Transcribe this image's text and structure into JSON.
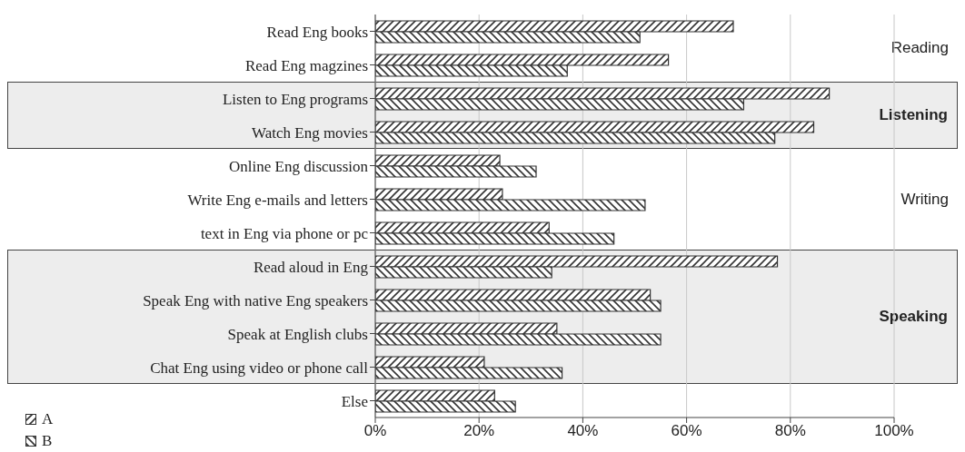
{
  "chart_data": {
    "type": "bar",
    "orientation": "horizontal",
    "categories": [
      "Read Eng books",
      "Read Eng magzines",
      "Listen to Eng programs",
      "Watch Eng movies",
      "Online Eng discussion",
      "Write Eng e-mails and letters",
      "text in Eng via phone or pc",
      "Read aloud in Eng",
      "Speak Eng with native Eng speakers",
      "Speak at English clubs",
      "Chat Eng using video or phone call",
      "Else"
    ],
    "series": [
      {
        "name": "A",
        "color": "#333333",
        "values": [
          69,
          56.5,
          87.5,
          84.5,
          24,
          24.5,
          33.5,
          77.5,
          53,
          35,
          21,
          23
        ]
      },
      {
        "name": "B",
        "color": "#333333",
        "values": [
          51,
          37,
          71,
          77,
          31,
          52,
          46,
          34,
          55,
          55,
          36,
          27
        ]
      }
    ],
    "xlim": [
      0,
      100
    ],
    "xticks": [
      {
        "value": 0,
        "label": "0%"
      },
      {
        "value": 20,
        "label": "20%"
      },
      {
        "value": 40,
        "label": "40%"
      },
      {
        "value": 60,
        "label": "60%"
      },
      {
        "value": 80,
        "label": "80%"
      },
      {
        "value": 100,
        "label": "100%"
      }
    ],
    "grid": "x",
    "legend": "bottom left",
    "annotations": [
      "Reading",
      "Writing"
    ],
    "bands": [
      {
        "axis": "y",
        "from": "Listen to Eng programs",
        "to": "Watch Eng movies",
        "label": "Listening",
        "color": "#ededed"
      },
      {
        "axis": "y",
        "from": "Read aloud in Eng",
        "to": "Chat Eng using video or phone call",
        "label": "Speaking",
        "color": "#ededed"
      }
    ]
  }
}
